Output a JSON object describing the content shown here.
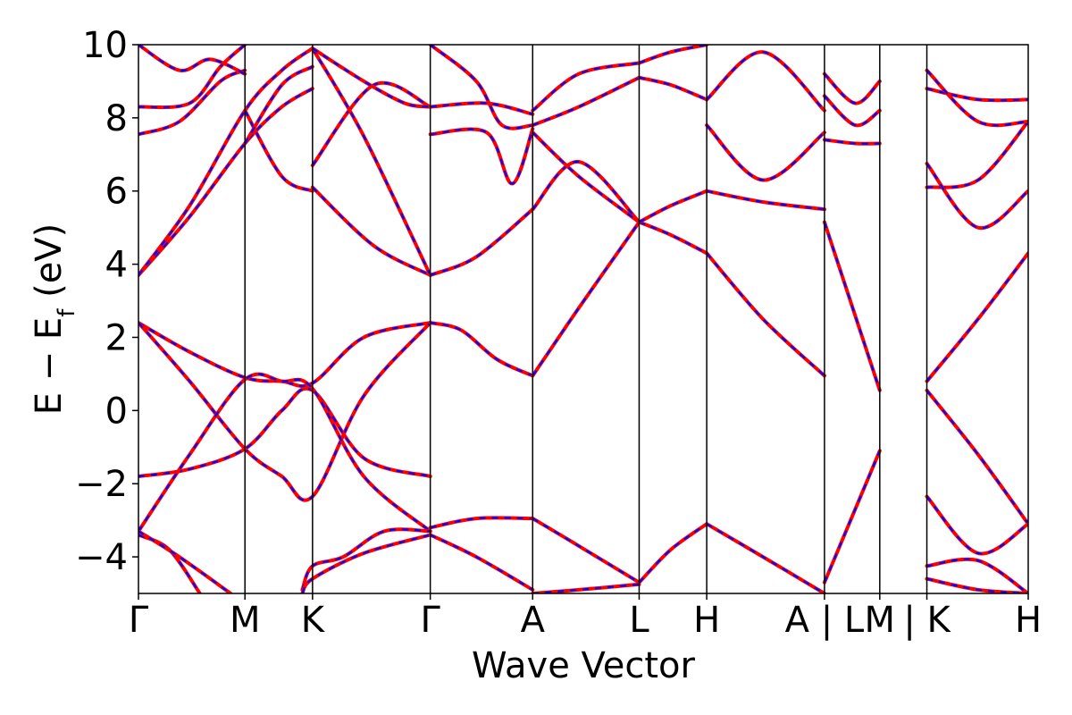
{
  "chart_data": {
    "type": "line",
    "title": "",
    "xlabel": "Wave Vector",
    "ylabel": {
      "main": "E − E",
      "sub": "f",
      "unit": " (eV)"
    },
    "ylim": [
      -5,
      10
    ],
    "y_ticks": [
      {
        "value": -4,
        "label": "−4"
      },
      {
        "value": -2,
        "label": "−2"
      },
      {
        "value": 0,
        "label": "0"
      },
      {
        "value": 2,
        "label": "2"
      },
      {
        "value": 4,
        "label": "4"
      },
      {
        "value": 6,
        "label": "6"
      },
      {
        "value": 8,
        "label": "8"
      },
      {
        "value": 10,
        "label": "10"
      }
    ],
    "xlim": [
      0,
      8.69
    ],
    "x_ticks": [
      {
        "value": 0,
        "label": "Γ"
      },
      {
        "value": 1.04,
        "label": "M"
      },
      {
        "value": 1.7,
        "label": "K"
      },
      {
        "value": 2.85,
        "label": "Γ"
      },
      {
        "value": 3.85,
        "label": "A"
      },
      {
        "value": 4.89,
        "label": "L"
      },
      {
        "value": 5.55,
        "label": "H"
      },
      {
        "value": 6.7,
        "label": "A | L"
      },
      {
        "value": 7.24,
        "label": "M"
      },
      {
        "value": 7.7,
        "label": "| K"
      },
      {
        "value": 8.69,
        "label": "H"
      }
    ],
    "grid": false,
    "legend": "none",
    "colors": {
      "solid": "#ff0000",
      "dashed": "#0000ff"
    },
    "bands": [
      {
        "x": [
          0,
          0.5,
          1.04,
          1.4,
          1.7,
          2.2,
          2.85
        ],
        "y": [
          2.4,
          1.6,
          0.9,
          0.8,
          0.75,
          2.0,
          2.4
        ]
      },
      {
        "x": [
          0,
          0.5,
          1.04,
          1.4,
          1.7,
          2.2,
          2.85
        ],
        "y": [
          2.4,
          0.8,
          -1.05,
          -1.8,
          -2.35,
          0.4,
          2.4
        ]
      },
      {
        "x": [
          0,
          0.5,
          1.04,
          1.4,
          1.7,
          2.2,
          2.85
        ],
        "y": [
          -1.8,
          -1.6,
          -1.05,
          0.0,
          0.55,
          -1.3,
          -1.8
        ]
      },
      {
        "x": [
          0,
          0.5,
          1.04,
          1.4,
          1.7,
          2.2,
          2.85
        ],
        "y": [
          -3.3,
          -1.2,
          0.85,
          0.8,
          0.6,
          -1.8,
          -3.3
        ]
      },
      {
        "x": [
          0,
          0.3,
          0.6
        ],
        "y": [
          -3.4,
          -3.8,
          -5.0
        ]
      },
      {
        "x": [
          0,
          0.4,
          0.9
        ],
        "y": [
          -3.3,
          -4.0,
          -5.0
        ]
      },
      {
        "x": [
          1.6,
          1.7,
          2.0,
          2.4,
          2.85
        ],
        "y": [
          -4.9,
          -4.25,
          -4.0,
          -3.3,
          -3.3
        ]
      },
      {
        "x": [
          1.6,
          1.7,
          2.2,
          2.85
        ],
        "y": [
          -5.0,
          -4.6,
          -3.9,
          -3.4
        ]
      },
      {
        "x": [
          0,
          0.5,
          1.04,
          1.4,
          1.7
        ],
        "y": [
          3.7,
          5.3,
          7.3,
          8.3,
          8.8
        ]
      },
      {
        "x": [
          0,
          0.5,
          1.04,
          1.4,
          1.7
        ],
        "y": [
          3.7,
          5.6,
          8.2,
          9.3,
          9.9
        ]
      },
      {
        "x": [
          0,
          0.4,
          0.8,
          1.04
        ],
        "y": [
          7.55,
          7.9,
          9.0,
          9.3
        ]
      },
      {
        "x": [
          0,
          0.5,
          0.8,
          1.04
        ],
        "y": [
          8.3,
          8.4,
          9.4,
          10.0
        ]
      },
      {
        "x": [
          0,
          0.4,
          0.7,
          1.04
        ],
        "y": [
          10.0,
          9.3,
          9.6,
          9.2
        ]
      },
      {
        "x": [
          1.04,
          1.4,
          1.7
        ],
        "y": [
          8.2,
          6.4,
          6.0
        ]
      },
      {
        "x": [
          1.04,
          1.4,
          1.7
        ],
        "y": [
          7.3,
          8.9,
          9.4
        ]
      },
      {
        "x": [
          1.7,
          2.3,
          2.85
        ],
        "y": [
          6.1,
          4.5,
          3.7
        ]
      },
      {
        "x": [
          1.7,
          2.3,
          2.85
        ],
        "y": [
          6.7,
          8.9,
          8.3
        ]
      },
      {
        "x": [
          1.7,
          2.2,
          2.85
        ],
        "y": [
          9.9,
          7.5,
          3.7
        ]
      },
      {
        "x": [
          1.7,
          2.2,
          2.6,
          2.85
        ],
        "y": [
          9.9,
          9.0,
          8.4,
          8.3
        ]
      },
      {
        "x": [
          2.85,
          3.15,
          3.5,
          3.85
        ],
        "y": [
          2.4,
          2.2,
          1.4,
          0.95
        ]
      },
      {
        "x": [
          2.85,
          3.3,
          3.85
        ],
        "y": [
          3.7,
          4.2,
          5.5
        ]
      },
      {
        "x": [
          2.85,
          3.4,
          3.65,
          3.85
        ],
        "y": [
          7.55,
          7.6,
          6.2,
          7.7
        ]
      },
      {
        "x": [
          2.85,
          3.4,
          3.85
        ],
        "y": [
          8.3,
          8.4,
          8.1
        ]
      },
      {
        "x": [
          2.85,
          3.3,
          3.55,
          3.85
        ],
        "y": [
          10.0,
          9.0,
          7.8,
          7.8
        ]
      },
      {
        "x": [
          2.85,
          3.3,
          3.85
        ],
        "y": [
          -3.2,
          -2.95,
          -2.95
        ]
      },
      {
        "x": [
          2.85,
          3.3,
          3.85
        ],
        "y": [
          -3.4,
          -4.0,
          -4.9
        ]
      },
      {
        "x": [
          3.85,
          4.3,
          4.89
        ],
        "y": [
          0.95,
          2.8,
          5.15
        ]
      },
      {
        "x": [
          3.85,
          4.3,
          4.89
        ],
        "y": [
          5.5,
          6.8,
          5.15
        ]
      },
      {
        "x": [
          3.85,
          4.3,
          4.89
        ],
        "y": [
          7.6,
          6.4,
          5.15
        ]
      },
      {
        "x": [
          3.85,
          4.3,
          4.89
        ],
        "y": [
          7.8,
          8.3,
          9.1
        ]
      },
      {
        "x": [
          3.85,
          4.3,
          4.89
        ],
        "y": [
          8.2,
          9.2,
          9.5
        ]
      },
      {
        "x": [
          3.85,
          4.3,
          4.89
        ],
        "y": [
          -2.95,
          -3.7,
          -4.7
        ]
      },
      {
        "x": [
          3.85,
          4.3,
          4.89
        ],
        "y": [
          -5.0,
          -4.9,
          -4.75
        ]
      },
      {
        "x": [
          4.89,
          5.2,
          5.55
        ],
        "y": [
          5.15,
          4.8,
          4.3
        ]
      },
      {
        "x": [
          4.89,
          5.2,
          5.55
        ],
        "y": [
          5.15,
          5.6,
          6.0
        ]
      },
      {
        "x": [
          4.89,
          5.2,
          5.55
        ],
        "y": [
          9.1,
          8.9,
          8.5
        ]
      },
      {
        "x": [
          4.89,
          5.2,
          5.55
        ],
        "y": [
          9.5,
          9.8,
          10.0
        ]
      },
      {
        "x": [
          4.89,
          5.2,
          5.55
        ],
        "y": [
          -4.7,
          -3.8,
          -3.1
        ]
      },
      {
        "x": [
          5.55,
          6.1,
          6.7
        ],
        "y": [
          4.3,
          2.5,
          0.95
        ]
      },
      {
        "x": [
          5.55,
          6.1,
          6.7
        ],
        "y": [
          6.0,
          5.7,
          5.5
        ]
      },
      {
        "x": [
          5.55,
          6.1,
          6.7
        ],
        "y": [
          7.8,
          6.3,
          7.6
        ]
      },
      {
        "x": [
          5.55,
          6.1,
          6.7
        ],
        "y": [
          8.5,
          9.8,
          8.2
        ]
      },
      {
        "x": [
          5.55,
          6.1,
          6.7
        ],
        "y": [
          -3.1,
          -4.0,
          -5.0
        ]
      },
      {
        "x": [
          6.7,
          7.24
        ],
        "y": [
          5.15,
          0.55
        ]
      },
      {
        "x": [
          6.7,
          7.24
        ],
        "y": [
          -4.7,
          -1.1
        ]
      },
      {
        "x": [
          6.7,
          7.0,
          7.24
        ],
        "y": [
          7.4,
          7.3,
          7.3
        ]
      },
      {
        "x": [
          6.7,
          7.0,
          7.24
        ],
        "y": [
          8.6,
          7.8,
          8.2
        ]
      },
      {
        "x": [
          6.7,
          7.0,
          7.24
        ],
        "y": [
          9.2,
          8.4,
          9.0
        ]
      },
      {
        "x": [
          7.7,
          8.2,
          8.69
        ],
        "y": [
          0.55,
          -1.2,
          -3.1
        ]
      },
      {
        "x": [
          7.7,
          8.2,
          8.69
        ],
        "y": [
          0.8,
          2.5,
          4.3
        ]
      },
      {
        "x": [
          7.7,
          8.2,
          8.69
        ],
        "y": [
          -2.35,
          -3.9,
          -3.1
        ]
      },
      {
        "x": [
          7.7,
          8.2,
          8.69
        ],
        "y": [
          6.1,
          6.3,
          7.9
        ]
      },
      {
        "x": [
          7.7,
          8.2,
          8.69
        ],
        "y": [
          6.75,
          5.0,
          6.0
        ]
      },
      {
        "x": [
          7.7,
          8.2,
          8.69
        ],
        "y": [
          8.8,
          8.5,
          8.5
        ]
      },
      {
        "x": [
          7.7,
          8.2,
          8.69
        ],
        "y": [
          9.3,
          7.9,
          7.9
        ]
      },
      {
        "x": [
          7.7,
          8.2,
          8.69
        ],
        "y": [
          -4.25,
          -4.1,
          -5.0
        ]
      },
      {
        "x": [
          7.7,
          8.2,
          8.69
        ],
        "y": [
          -4.6,
          -4.9,
          -5.0
        ]
      }
    ]
  }
}
